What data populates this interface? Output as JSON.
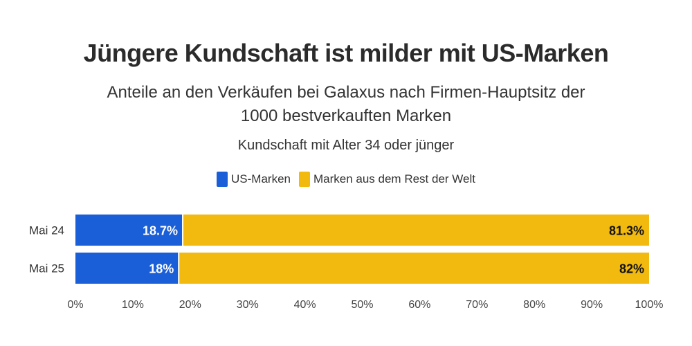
{
  "chart_data": {
    "type": "bar",
    "orientation": "horizontal",
    "stacked": true,
    "title": "Jüngere Kundschaft ist milder mit US-Marken",
    "subtitle": "Anteile an den Verkäufen bei Galaxus nach Firmen-Hauptsitz der 1000 bestverkauften Marken",
    "subtitle2": "Kundschaft mit Alter 34 oder jünger",
    "categories": [
      "Mai 24",
      "Mai 25"
    ],
    "series": [
      {
        "name": "US-Marken",
        "values": [
          18.7,
          18
        ],
        "labels": [
          "18.7%",
          "18%"
        ],
        "color": "#1a5fd8"
      },
      {
        "name": "Marken aus dem Rest der Welt",
        "values": [
          81.3,
          82
        ],
        "labels": [
          "81.3%",
          "82%"
        ],
        "color": "#f2b90f"
      }
    ],
    "xlim": [
      0,
      100
    ],
    "xticks": [
      "0%",
      "10%",
      "20%",
      "30%",
      "40%",
      "50%",
      "60%",
      "70%",
      "80%",
      "90%",
      "100%"
    ],
    "legend_position": "top-center",
    "grid": false
  }
}
